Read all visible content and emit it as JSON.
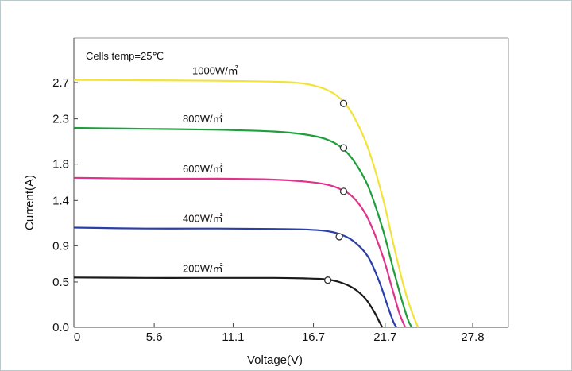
{
  "chart_data": {
    "type": "line",
    "title": "",
    "annotation": "Cells temp=25℃",
    "xlabel": "Voltage(V)",
    "ylabel": "Current(A)",
    "xlim": [
      0,
      27.8
    ],
    "ylim": [
      0,
      3.05
    ],
    "x_ticks": [
      0,
      5.6,
      11.1,
      16.7,
      21.7,
      27.8
    ],
    "x_tick_labels": [
      "0",
      "5.6",
      "11.1",
      "16.7",
      "21.7",
      "27.8"
    ],
    "y_ticks": [
      0,
      0.5,
      0.9,
      1.4,
      1.8,
      2.3,
      2.7
    ],
    "y_tick_labels": [
      "0.0",
      "0.5",
      "0.9",
      "1.4",
      "1.8",
      "2.3",
      "2.7"
    ],
    "grid": false,
    "legend": "none",
    "series": [
      {
        "name": "1000W/㎡",
        "color": "#f2e33a",
        "points": [
          [
            0,
            2.73
          ],
          [
            5,
            2.725
          ],
          [
            10,
            2.72
          ],
          [
            14,
            2.71
          ],
          [
            16,
            2.69
          ],
          [
            17.5,
            2.63
          ],
          [
            18.6,
            2.52
          ],
          [
            19.5,
            2.33
          ],
          [
            20.5,
            1.98
          ],
          [
            21.5,
            1.45
          ],
          [
            22.3,
            0.9
          ],
          [
            23,
            0.45
          ],
          [
            23.6,
            0.15
          ],
          [
            24.0,
            0
          ]
        ],
        "mpp": [
          18.8,
          2.47
        ]
      },
      {
        "name": "800W/㎡",
        "color": "#1f9e3c",
        "points": [
          [
            0,
            2.2
          ],
          [
            5,
            2.19
          ],
          [
            10,
            2.18
          ],
          [
            14,
            2.16
          ],
          [
            16,
            2.13
          ],
          [
            17.5,
            2.08
          ],
          [
            18.6,
            1.99
          ],
          [
            19.5,
            1.84
          ],
          [
            20.5,
            1.56
          ],
          [
            21.5,
            1.1
          ],
          [
            22.3,
            0.62
          ],
          [
            22.9,
            0.28
          ],
          [
            23.3,
            0.08
          ],
          [
            23.55,
            0
          ]
        ],
        "mpp": [
          18.8,
          1.98
        ]
      },
      {
        "name": "600W/㎡",
        "color": "#e0338b",
        "points": [
          [
            0,
            1.65
          ],
          [
            5,
            1.64
          ],
          [
            10,
            1.64
          ],
          [
            14,
            1.63
          ],
          [
            16,
            1.61
          ],
          [
            17.5,
            1.58
          ],
          [
            18.5,
            1.53
          ],
          [
            19.5,
            1.43
          ],
          [
            20.5,
            1.2
          ],
          [
            21.5,
            0.8
          ],
          [
            22.2,
            0.42
          ],
          [
            22.7,
            0.15
          ],
          [
            23.1,
            0
          ]
        ],
        "mpp": [
          18.8,
          1.5
        ]
      },
      {
        "name": "400W/㎡",
        "color": "#2b3fa8",
        "points": [
          [
            0,
            1.1
          ],
          [
            5,
            1.09
          ],
          [
            10,
            1.09
          ],
          [
            14,
            1.085
          ],
          [
            16,
            1.08
          ],
          [
            17.5,
            1.065
          ],
          [
            18.5,
            1.03
          ],
          [
            19.5,
            0.95
          ],
          [
            20.5,
            0.78
          ],
          [
            21.3,
            0.5
          ],
          [
            21.9,
            0.22
          ],
          [
            22.3,
            0.05
          ],
          [
            22.5,
            0
          ]
        ],
        "mpp": [
          18.5,
          1.0
        ]
      },
      {
        "name": "200W/㎡",
        "color": "#1a1a1a",
        "points": [
          [
            0,
            0.55
          ],
          [
            5,
            0.545
          ],
          [
            10,
            0.545
          ],
          [
            14,
            0.545
          ],
          [
            16,
            0.54
          ],
          [
            17.5,
            0.53
          ],
          [
            18.5,
            0.5
          ],
          [
            19.5,
            0.43
          ],
          [
            20.3,
            0.32
          ],
          [
            20.9,
            0.18
          ],
          [
            21.3,
            0.06
          ],
          [
            21.5,
            0
          ]
        ],
        "mpp": [
          17.7,
          0.52
        ]
      }
    ]
  }
}
